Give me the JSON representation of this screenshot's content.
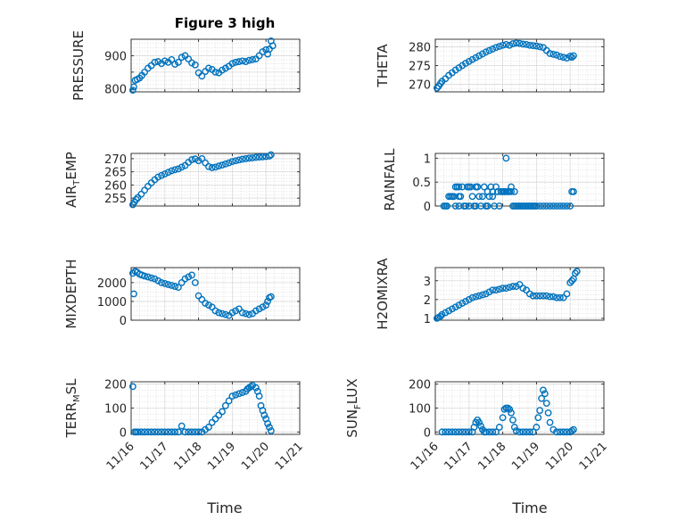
{
  "figure": {
    "title": "Figure 3 high",
    "marker_color": "#0072BD"
  },
  "chart_data": [
    {
      "type": "scatter",
      "ylabel": "PRESSURE",
      "xlim": [
        0,
        5
      ],
      "ylim": [
        790,
        950
      ],
      "yticks": [
        800,
        850,
        900
      ],
      "ytick_labels": [
        "800",
        "",
        "900"
      ],
      "x": [
        0.05,
        0.08,
        0.12,
        0.18,
        0.25,
        0.32,
        0.4,
        0.5,
        0.6,
        0.7,
        0.8,
        0.9,
        1.0,
        1.1,
        1.2,
        1.3,
        1.4,
        1.5,
        1.6,
        1.7,
        1.8,
        1.9,
        2.0,
        2.1,
        2.2,
        2.3,
        2.4,
        2.5,
        2.6,
        2.7,
        2.8,
        2.9,
        3.0,
        3.1,
        3.2,
        3.3,
        3.4,
        3.5,
        3.6,
        3.7,
        3.8,
        3.9,
        4.0,
        4.05,
        4.1,
        4.15,
        4.2
      ],
      "y": [
        795,
        805,
        825,
        828,
        832,
        840,
        850,
        862,
        870,
        880,
        882,
        876,
        884,
        880,
        888,
        874,
        880,
        895,
        900,
        890,
        878,
        872,
        848,
        838,
        852,
        862,
        858,
        850,
        848,
        856,
        862,
        868,
        876,
        880,
        882,
        884,
        882,
        886,
        888,
        890,
        900,
        912,
        918,
        905,
        920,
        945,
        930
      ]
    },
    {
      "type": "scatter",
      "ylabel": "THETA",
      "xlim": [
        0,
        5
      ],
      "ylim": [
        268,
        282
      ],
      "yticks": [
        270,
        275,
        280
      ],
      "ytick_labels": [
        "270",
        "275",
        "280"
      ],
      "x": [
        0.05,
        0.1,
        0.15,
        0.2,
        0.3,
        0.4,
        0.5,
        0.6,
        0.7,
        0.8,
        0.9,
        1.0,
        1.1,
        1.2,
        1.3,
        1.4,
        1.5,
        1.6,
        1.7,
        1.8,
        1.9,
        2.0,
        2.1,
        2.2,
        2.3,
        2.4,
        2.5,
        2.6,
        2.7,
        2.8,
        2.9,
        3.0,
        3.1,
        3.2,
        3.3,
        3.4,
        3.5,
        3.6,
        3.7,
        3.8,
        3.9,
        4.0,
        4.05,
        4.1
      ],
      "y": [
        269,
        269.5,
        270.2,
        270.8,
        271.5,
        272.4,
        273.1,
        273.8,
        274.4,
        275.0,
        275.6,
        276.1,
        276.6,
        277.1,
        277.6,
        278.1,
        278.6,
        279.0,
        279.4,
        279.8,
        280.1,
        280.4,
        280.6,
        280.4,
        280.8,
        281.0,
        280.9,
        280.7,
        280.6,
        280.4,
        280.3,
        280.2,
        280.0,
        279.8,
        279.0,
        278.2,
        278.0,
        277.8,
        277.4,
        277.2,
        277.0,
        277.5,
        277.2,
        277.6
      ]
    },
    {
      "type": "scatter",
      "ylabel": "AIR_TEMP",
      "ylabel_main": "AIR",
      "ylabel_sub": "T",
      "ylabel_rest": "EMP",
      "xlim": [
        0,
        5
      ],
      "ylim": [
        252,
        272
      ],
      "yticks": [
        255,
        260,
        265,
        270
      ],
      "ytick_labels": [
        "255",
        "260",
        "265",
        "270"
      ],
      "x": [
        0.05,
        0.1,
        0.15,
        0.2,
        0.3,
        0.4,
        0.5,
        0.6,
        0.7,
        0.8,
        0.9,
        1.0,
        1.1,
        1.2,
        1.3,
        1.4,
        1.5,
        1.6,
        1.7,
        1.8,
        1.9,
        2.0,
        2.1,
        2.2,
        2.3,
        2.4,
        2.5,
        2.6,
        2.7,
        2.8,
        2.9,
        3.0,
        3.1,
        3.2,
        3.3,
        3.4,
        3.5,
        3.6,
        3.7,
        3.8,
        3.9,
        4.0,
        4.1,
        4.15
      ],
      "y": [
        252.5,
        253.5,
        254.5,
        255.2,
        256.5,
        258.0,
        259.5,
        260.8,
        262.0,
        263.0,
        263.6,
        264.2,
        264.8,
        265.4,
        265.8,
        266.1,
        266.8,
        267.4,
        268.6,
        269.6,
        269.9,
        269.2,
        270.0,
        268.4,
        267.0,
        266.6,
        266.8,
        267.2,
        267.6,
        268.0,
        268.4,
        268.9,
        269.2,
        269.5,
        269.8,
        270.0,
        270.2,
        270.3,
        270.5,
        270.6,
        270.7,
        270.8,
        271.0,
        271.5
      ]
    },
    {
      "type": "scatter",
      "ylabel": "RAINFALL",
      "xlim": [
        0,
        5
      ],
      "ylim": [
        0,
        1.1
      ],
      "yticks": [
        0,
        0.5,
        1
      ],
      "ytick_labels": [
        "0",
        "0.5",
        "1"
      ],
      "x": [
        0.25,
        0.3,
        0.35,
        0.4,
        0.45,
        0.5,
        0.55,
        0.6,
        0.6,
        0.65,
        0.7,
        0.7,
        0.75,
        0.8,
        0.85,
        0.9,
        0.95,
        1.0,
        1.0,
        1.05,
        1.1,
        1.15,
        1.2,
        1.2,
        1.25,
        1.3,
        1.35,
        1.4,
        1.45,
        1.5,
        1.55,
        1.6,
        1.65,
        1.7,
        1.75,
        1.8,
        1.85,
        1.9,
        1.95,
        2.0,
        2.05,
        2.1,
        2.15,
        2.2,
        2.25,
        2.3,
        2.35,
        2.4,
        2.45,
        2.5,
        2.55,
        2.6,
        2.65,
        2.7,
        2.75,
        2.8,
        2.85,
        2.9,
        2.95,
        3.0,
        3.1,
        3.2,
        3.3,
        3.4,
        3.5,
        3.6,
        3.7,
        3.8,
        3.9,
        4.0,
        4.05,
        4.1,
        1.85,
        1.95,
        2.05,
        2.15,
        2.25,
        2.35,
        0.5,
        0.7,
        1.25,
        1.55,
        1.7,
        2.1
      ],
      "y": [
        0,
        0,
        0,
        0.2,
        0.2,
        0.2,
        0.2,
        0.4,
        0,
        0.4,
        0.2,
        0,
        0.2,
        0.4,
        0,
        0,
        0.4,
        0,
        0.4,
        0.4,
        0.2,
        0,
        0.4,
        0,
        0.4,
        0.2,
        0,
        0.2,
        0.4,
        0,
        0,
        0.2,
        0.4,
        0.2,
        0,
        0.4,
        0.3,
        0,
        0.3,
        0.3,
        0.3,
        0.3,
        0.3,
        0.3,
        0.4,
        0,
        0,
        0,
        0,
        0,
        0,
        0,
        0,
        0,
        0,
        0,
        0,
        0,
        0,
        0,
        0,
        0,
        0,
        0,
        0,
        0,
        0,
        0,
        0,
        0,
        0.3,
        0.3,
        0.3,
        0.3,
        0.3,
        0.3,
        0.3,
        0.3,
        0.2,
        0.4,
        0.4,
        0.3,
        0.3,
        1.0
      ]
    },
    {
      "type": "scatter",
      "ylabel": "MIXDEPTH",
      "xlim": [
        0,
        5
      ],
      "ylim": [
        0,
        2800
      ],
      "yticks": [
        0,
        1000,
        2000
      ],
      "ytick_labels": [
        "0",
        "1000",
        "2000"
      ],
      "x": [
        0.05,
        0.08,
        0.12,
        0.18,
        0.25,
        0.32,
        0.4,
        0.5,
        0.6,
        0.7,
        0.8,
        0.9,
        1.0,
        1.1,
        1.2,
        1.3,
        1.4,
        1.5,
        1.6,
        1.7,
        1.8,
        1.9,
        2.0,
        2.1,
        2.2,
        2.3,
        2.4,
        2.5,
        2.6,
        2.7,
        2.8,
        2.9,
        3.0,
        3.1,
        3.2,
        3.3,
        3.4,
        3.5,
        3.6,
        3.7,
        3.8,
        3.9,
        4.0,
        4.05,
        4.1,
        4.15
      ],
      "y": [
        2500,
        1400,
        2600,
        2550,
        2450,
        2400,
        2350,
        2300,
        2250,
        2200,
        2100,
        2000,
        1950,
        1900,
        1850,
        1800,
        1750,
        2000,
        2200,
        2300,
        2400,
        2000,
        1300,
        1100,
        900,
        800,
        700,
        500,
        400,
        350,
        300,
        250,
        400,
        500,
        600,
        400,
        350,
        300,
        350,
        500,
        600,
        700,
        800,
        1000,
        1200,
        1250
      ]
    },
    {
      "type": "scatter",
      "ylabel": "H2OMIXRA",
      "xlim": [
        0,
        5
      ],
      "ylim": [
        0.9,
        3.7
      ],
      "yticks": [
        1,
        2,
        3
      ],
      "ytick_labels": [
        "1",
        "2",
        "3"
      ],
      "x": [
        0.05,
        0.1,
        0.15,
        0.2,
        0.3,
        0.4,
        0.5,
        0.6,
        0.7,
        0.8,
        0.9,
        1.0,
        1.1,
        1.2,
        1.3,
        1.4,
        1.5,
        1.6,
        1.7,
        1.8,
        1.9,
        2.0,
        2.1,
        2.2,
        2.3,
        2.4,
        2.5,
        2.6,
        2.7,
        2.8,
        2.9,
        3.0,
        3.1,
        3.2,
        3.3,
        3.4,
        3.5,
        3.6,
        3.7,
        3.8,
        3.9,
        4.0,
        4.05,
        4.1,
        4.15,
        4.2
      ],
      "y": [
        1.0,
        1.05,
        1.1,
        1.2,
        1.3,
        1.4,
        1.5,
        1.6,
        1.7,
        1.8,
        1.9,
        2.0,
        2.1,
        2.15,
        2.2,
        2.25,
        2.3,
        2.4,
        2.5,
        2.5,
        2.55,
        2.6,
        2.6,
        2.65,
        2.7,
        2.7,
        2.8,
        2.6,
        2.5,
        2.3,
        2.2,
        2.2,
        2.2,
        2.2,
        2.2,
        2.15,
        2.15,
        2.1,
        2.1,
        2.1,
        2.3,
        2.9,
        3.0,
        3.1,
        3.4,
        3.5
      ]
    },
    {
      "type": "scatter",
      "ylabel": "TERR_MSL",
      "ylabel_main": "TERR",
      "ylabel_sub": "M",
      "ylabel_rest": "SL",
      "xlim": [
        0,
        5
      ],
      "ylim": [
        -10,
        210
      ],
      "yticks": [
        0,
        100,
        200
      ],
      "ytick_labels": [
        "0",
        "100",
        "200"
      ],
      "x": [
        0.05,
        0.1,
        0.15,
        0.2,
        0.3,
        0.4,
        0.5,
        0.6,
        0.7,
        0.8,
        0.9,
        1.0,
        1.1,
        1.2,
        1.3,
        1.4,
        1.5,
        1.6,
        1.7,
        1.8,
        1.9,
        2.0,
        2.1,
        2.2,
        2.3,
        2.4,
        2.5,
        2.6,
        2.7,
        2.8,
        2.9,
        3.0,
        3.1,
        3.2,
        3.3,
        3.4,
        3.45,
        3.5,
        3.55,
        3.6,
        3.7,
        3.75,
        3.8,
        3.85,
        3.9,
        3.95,
        4.0,
        4.05,
        4.1,
        4.15
      ],
      "y": [
        190,
        0,
        0,
        0,
        0,
        0,
        0,
        0,
        0,
        0,
        0,
        0,
        0,
        0,
        0,
        0,
        25,
        0,
        0,
        0,
        0,
        0,
        0,
        10,
        20,
        40,
        55,
        70,
        85,
        110,
        130,
        150,
        155,
        160,
        165,
        170,
        180,
        185,
        190,
        195,
        185,
        170,
        150,
        110,
        90,
        70,
        55,
        35,
        20,
        5
      ]
    },
    {
      "type": "scatter",
      "ylabel": "SUN_FLUX",
      "ylabel_main": "SUN",
      "ylabel_sub": "F",
      "ylabel_rest": "LUX",
      "xlim": [
        0,
        5
      ],
      "ylim": [
        -10,
        210
      ],
      "yticks": [
        0,
        100,
        200
      ],
      "ytick_labels": [
        "0",
        "100",
        "200"
      ],
      "x": [
        0.2,
        0.3,
        0.4,
        0.5,
        0.6,
        0.7,
        0.8,
        0.9,
        1.0,
        1.1,
        1.15,
        1.2,
        1.25,
        1.3,
        1.35,
        1.4,
        1.45,
        1.5,
        1.6,
        1.7,
        1.8,
        1.9,
        2.0,
        2.05,
        2.1,
        2.15,
        2.2,
        2.25,
        2.3,
        2.35,
        2.4,
        2.5,
        2.6,
        2.7,
        2.8,
        2.9,
        3.0,
        3.05,
        3.1,
        3.15,
        3.2,
        3.25,
        3.3,
        3.35,
        3.4,
        3.5,
        3.6,
        3.7,
        3.8,
        3.9,
        4.0,
        4.05,
        4.1
      ],
      "y": [
        0,
        0,
        0,
        0,
        0,
        0,
        0,
        0,
        0,
        0,
        20,
        40,
        50,
        40,
        25,
        10,
        0,
        0,
        0,
        0,
        0,
        20,
        60,
        95,
        100,
        100,
        95,
        80,
        50,
        20,
        5,
        0,
        0,
        0,
        0,
        0,
        20,
        60,
        90,
        140,
        175,
        160,
        120,
        80,
        40,
        10,
        0,
        0,
        0,
        0,
        0,
        5,
        10
      ]
    }
  ],
  "x_axis": {
    "label": "Time",
    "xticks": [
      0,
      1,
      2,
      3,
      4,
      5
    ],
    "tick_labels": [
      "11/16",
      "11/17",
      "11/18",
      "11/19",
      "11/20",
      "11/21"
    ]
  }
}
